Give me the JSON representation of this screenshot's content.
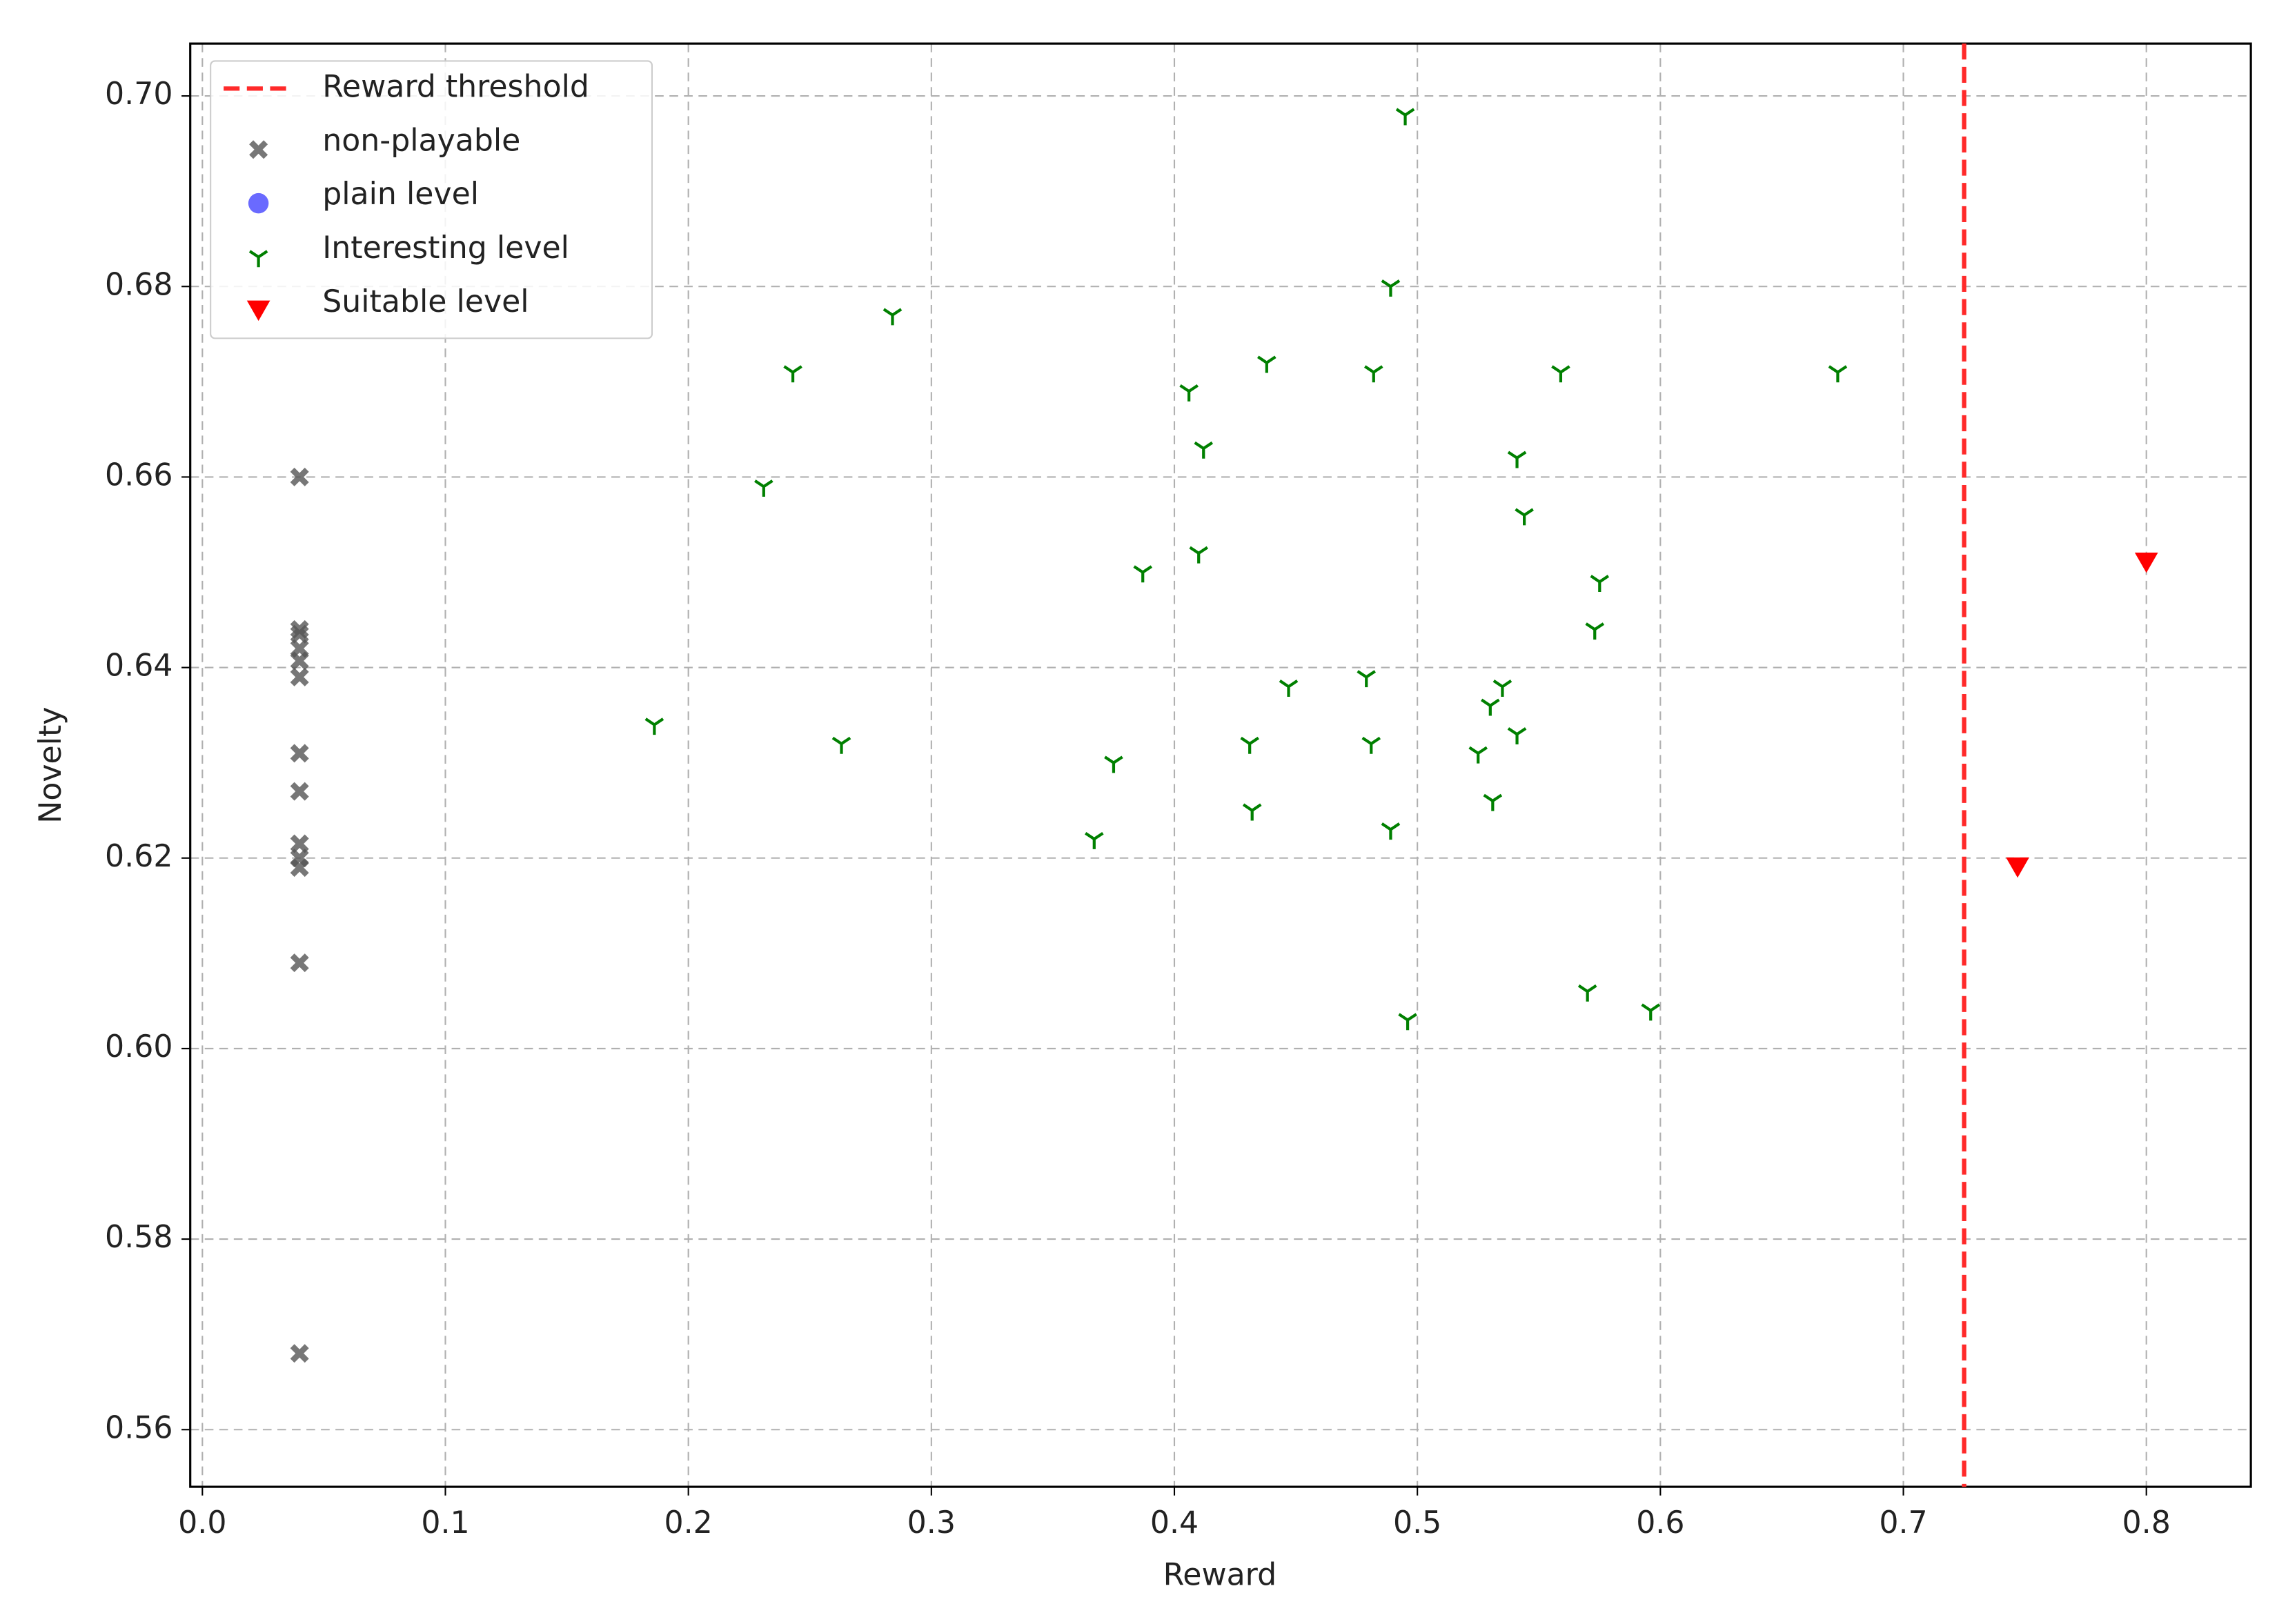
{
  "chart_data": {
    "type": "scatter",
    "xlabel": "Reward",
    "ylabel": "Novelty",
    "xlim": [
      -0.005,
      0.843
    ],
    "ylim": [
      0.554,
      0.7055
    ],
    "xticks": [
      {
        "value": 0,
        "label": "0.0"
      },
      0.1,
      0.2,
      0.3,
      0.4,
      0.5,
      0.6,
      0.7,
      0.8
    ],
    "yticks": [
      0.56,
      0.58,
      {
        "value": 0.6,
        "label": "0.60"
      },
      0.62,
      0.64,
      0.66,
      0.68,
      {
        "value": 0.7,
        "label": "0.70"
      }
    ],
    "grid": true,
    "legend": "upper left",
    "threshold": {
      "name": "Reward threshold",
      "value": 0.725,
      "color": "#ff2a2a"
    },
    "series": [
      {
        "name": "non-playable",
        "color": "#555555",
        "marker": "X",
        "x": [
          0.04,
          0.04,
          0.04,
          0.04,
          0.04,
          0.04,
          0.04,
          0.04,
          0.04,
          0.04,
          0.04,
          0.04,
          0.04
        ],
        "y": [
          0.66,
          0.644,
          0.6435,
          0.642,
          0.6407,
          0.639,
          0.631,
          0.627,
          0.6215,
          0.62,
          0.619,
          0.609,
          0.568
        ]
      },
      {
        "name": "plain level",
        "color": "#6a6aff",
        "marker": "o",
        "x": [],
        "y": []
      },
      {
        "name": "Interesting level",
        "color": "#008000",
        "marker": "1",
        "x": [
          0.495,
          0.489,
          0.284,
          0.243,
          0.438,
          0.482,
          0.559,
          0.673,
          0.406,
          0.412,
          0.231,
          0.541,
          0.544,
          0.387,
          0.41,
          0.575,
          0.573,
          0.186,
          0.263,
          0.375,
          0.367,
          0.447,
          0.479,
          0.431,
          0.481,
          0.432,
          0.489,
          0.535,
          0.53,
          0.541,
          0.525,
          0.531,
          0.496,
          0.57,
          0.596
        ],
        "y": [
          0.698,
          0.68,
          0.677,
          0.671,
          0.672,
          0.671,
          0.671,
          0.671,
          0.669,
          0.663,
          0.659,
          0.662,
          0.656,
          0.65,
          0.652,
          0.649,
          0.644,
          0.634,
          0.632,
          0.63,
          0.622,
          0.638,
          0.639,
          0.632,
          0.632,
          0.625,
          0.623,
          0.638,
          0.636,
          0.633,
          0.631,
          0.626,
          0.603,
          0.606,
          0.604
        ]
      },
      {
        "name": "Suitable level",
        "color": "#ff0000",
        "marker": "v",
        "x": [
          0.8,
          0.747
        ],
        "y": [
          0.651,
          0.619
        ]
      }
    ]
  }
}
